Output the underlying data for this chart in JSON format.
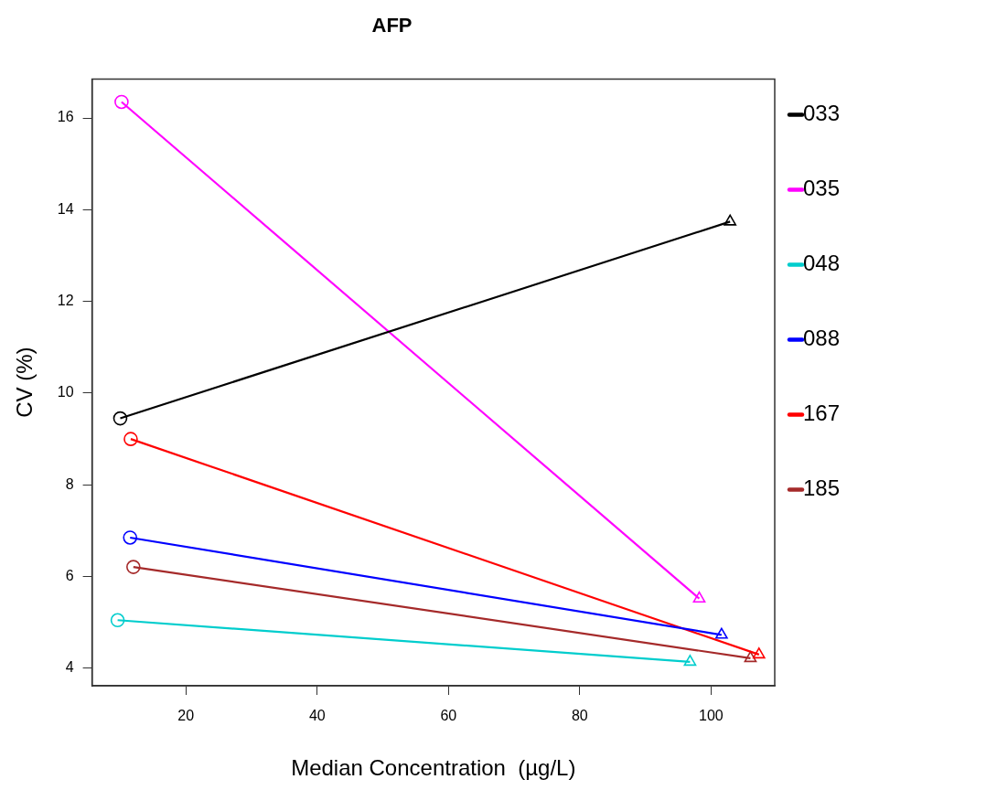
{
  "chart_data": {
    "type": "line",
    "title": "AFP",
    "xlabel": "Median Concentration  (µg/L)",
    "ylabel": "CV (%)",
    "xlim": [
      5.7,
      109.7
    ],
    "xticks": [
      20,
      40,
      60,
      80,
      100
    ],
    "ylim": [
      3.62,
      16.85
    ],
    "yticks": [
      4,
      6,
      8,
      10,
      12,
      14,
      16
    ],
    "grid": false,
    "legend": "right",
    "marker": [
      "circle",
      "triangle"
    ],
    "series": [
      {
        "name": "033",
        "color": "#000000",
        "x": [
          10.0,
          102.9
        ],
        "values": [
          9.45,
          13.74
        ]
      },
      {
        "name": "035",
        "color": "#ff00ff",
        "x": [
          10.2,
          98.2
        ],
        "values": [
          16.35,
          5.52
        ]
      },
      {
        "name": "048",
        "color": "#00cdcd",
        "x": [
          9.6,
          96.8
        ],
        "values": [
          5.05,
          4.14
        ]
      },
      {
        "name": "088",
        "color": "#0000ff",
        "x": [
          11.5,
          101.6
        ],
        "values": [
          6.85,
          4.73
        ]
      },
      {
        "name": "167",
        "color": "#ff0000",
        "x": [
          11.6,
          107.3
        ],
        "values": [
          9.0,
          4.3
        ]
      },
      {
        "name": "185",
        "color": "#a52a2a",
        "x": [
          12.0,
          106.0
        ],
        "values": [
          6.21,
          4.22
        ]
      }
    ]
  }
}
